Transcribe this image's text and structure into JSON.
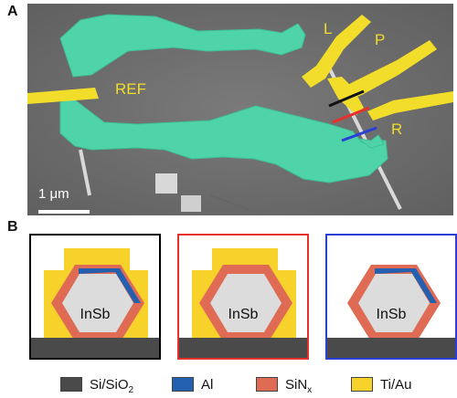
{
  "panelA": {
    "letter": "A",
    "labels": {
      "ref": "REF",
      "l": "L",
      "p": "P",
      "r": "R"
    },
    "scale_bar": "1 μm"
  },
  "panelB": {
    "letter": "B",
    "boxes": [
      {
        "label": "InSb",
        "frame": "#000000"
      },
      {
        "label": "InSb",
        "frame": "#e8302a"
      },
      {
        "label": "InSb",
        "frame": "#2a3fd6"
      }
    ]
  },
  "legend": [
    {
      "text": "Si/SiO",
      "sub": "2",
      "color": "#4a4a4a"
    },
    {
      "text": "Al",
      "sub": "",
      "color": "#2460b0"
    },
    {
      "text": "SiN",
      "sub": "x",
      "color": "#df6b55"
    },
    {
      "text": "Ti/Au",
      "sub": "",
      "color": "#f7d22b"
    }
  ],
  "colors": {
    "sem_bg": "#6f6f6f",
    "teal": "#4fd3a8",
    "gold": "#f2dd2a",
    "insb": "#dcdcdc"
  }
}
